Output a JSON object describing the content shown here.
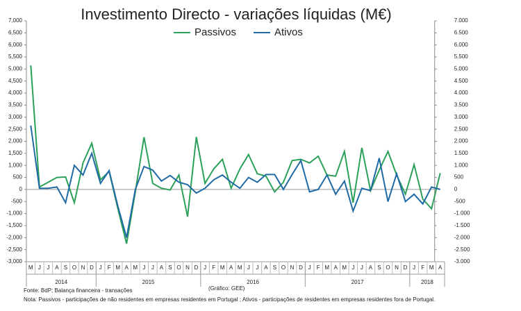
{
  "chart_data": {
    "type": "line",
    "title": "Investimento  Directo - variações líquidas (M€)",
    "categories": [
      "M",
      "J",
      "J",
      "A",
      "S",
      "O",
      "N",
      "D",
      "J",
      "F",
      "M",
      "A",
      "M",
      "J",
      "J",
      "A",
      "S",
      "O",
      "N",
      "D",
      "J",
      "F",
      "M",
      "A",
      "M",
      "J",
      "J",
      "A",
      "S",
      "O",
      "N",
      "D",
      "J",
      "F",
      "M",
      "A",
      "M",
      "J",
      "J",
      "A",
      "S",
      "O",
      "N",
      "D",
      "J",
      "F",
      "M",
      "A"
    ],
    "x_groups": [
      {
        "label": "2014",
        "count": 8
      },
      {
        "label": "2015",
        "count": 12
      },
      {
        "label": "2016",
        "count": 12
      },
      {
        "label": "2017",
        "count": 12
      },
      {
        "label": "2018",
        "count": 4
      }
    ],
    "series": [
      {
        "name": "Passivos",
        "color": "#2ca05a",
        "values": [
          5150,
          100,
          300,
          500,
          520,
          -550,
          1100,
          1920,
          400,
          750,
          -800,
          -2250,
          -100,
          2170,
          250,
          50,
          -20,
          600,
          -1130,
          2180,
          250,
          850,
          1250,
          50,
          850,
          1450,
          650,
          550,
          -100,
          300,
          1200,
          1250,
          1100,
          1380,
          600,
          550,
          1580,
          -550,
          1730,
          -50,
          800,
          1580,
          600,
          -200,
          1030,
          -400,
          -800,
          680
        ]
      },
      {
        "name": "Ativos",
        "color": "#1f6aa5",
        "values": [
          2650,
          50,
          50,
          100,
          -550,
          1000,
          600,
          1500,
          250,
          780,
          -700,
          -2000,
          0,
          950,
          800,
          350,
          580,
          300,
          200,
          -150,
          50,
          400,
          600,
          300,
          50,
          500,
          300,
          620,
          620,
          0,
          620,
          1200,
          -100,
          0,
          600,
          -200,
          350,
          -900,
          50,
          -50,
          1300,
          -500,
          650,
          -500,
          -200,
          -600,
          100,
          0
        ]
      }
    ],
    "ylim": [
      -3000,
      7000
    ],
    "yticks": [
      {
        "value": -3000,
        "label": "-3,000"
      },
      {
        "value": -2500,
        "label": "-2,500"
      },
      {
        "value": -2000,
        "label": "-2,000"
      },
      {
        "value": -1500,
        "label": "-1,500"
      },
      {
        "value": -1000,
        "label": "-1,000"
      },
      -500,
      0,
      500,
      {
        "value": 1000,
        "label": "1,000"
      },
      {
        "value": 1500,
        "label": "1,500"
      },
      {
        "value": 2000,
        "label": "2,000"
      },
      {
        "value": 2500,
        "label": "2,500"
      },
      {
        "value": 3000,
        "label": "3,000"
      },
      {
        "value": 3500,
        "label": "3,500"
      },
      {
        "value": 4000,
        "label": "4,000"
      },
      {
        "value": 4500,
        "label": "4,500"
      },
      {
        "value": 5000,
        "label": "5,000"
      },
      {
        "value": 5500,
        "label": "5,500"
      },
      {
        "value": 6000,
        "label": "6,000"
      },
      {
        "value": 6500,
        "label": "6,500"
      },
      {
        "value": 7000,
        "label": "7,000"
      }
    ],
    "y2lim": [
      -3000,
      7000
    ],
    "y2ticks": [
      {
        "value": -3000,
        "label": "-3.000"
      },
      {
        "value": -2500,
        "label": "-2.500"
      },
      {
        "value": -2000,
        "label": "-2.000"
      },
      {
        "value": -1500,
        "label": "-1.500"
      },
      {
        "value": -1000,
        "label": "-1.000"
      },
      -500,
      0,
      500,
      {
        "value": 1000,
        "label": "1.000"
      },
      {
        "value": 1500,
        "label": "1.500"
      },
      {
        "value": 2000,
        "label": "2.000"
      },
      {
        "value": 2500,
        "label": "2.500"
      },
      {
        "value": 3000,
        "label": "3.000"
      },
      {
        "value": 3500,
        "label": "3.500"
      },
      {
        "value": 4000,
        "label": "4.000"
      },
      {
        "value": 4500,
        "label": "4.500"
      },
      {
        "value": 5000,
        "label": "5.000"
      },
      {
        "value": 5500,
        "label": "5.500"
      },
      {
        "value": 6000,
        "label": "6.000"
      },
      {
        "value": 6500,
        "label": "6.500"
      },
      {
        "value": 7000,
        "label": "7.000"
      }
    ],
    "legend": "top",
    "grid": false,
    "source": "Fonte: BdP; Balança financeira - transações",
    "credit": "(Gráfico: GEE)",
    "note": "Nota: Passivos - participações de não residentes em empresas residentes em Portugal ; Ativos - participações de residentes em empresas residentes fora de Portugal."
  }
}
